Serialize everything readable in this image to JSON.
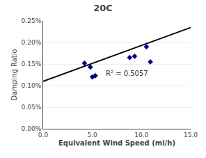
{
  "chart_data": {
    "type": "scatter",
    "title": "20C",
    "xlabel": "Equivalent Wind Speed (mi/h)",
    "ylabel": "Damping Ratio",
    "x": [
      4.2,
      4.8,
      5.0,
      5.3,
      8.8,
      9.3,
      10.5,
      10.9
    ],
    "values": [
      0.00152,
      0.00143,
      0.0012,
      0.00123,
      0.00165,
      0.00168,
      0.0019,
      0.00155
    ],
    "color": "#00008B",
    "marker": "diamond",
    "fit_line": {
      "x": [
        0.0,
        15.0
      ],
      "values": [
        0.0011,
        0.002345
      ],
      "color": "#000000",
      "line_style": "solid"
    },
    "annotations": [
      {
        "text": "R² = 0.5057",
        "x": 6.2,
        "y": 0.00128
      }
    ],
    "xlim": [
      0.0,
      15.0
    ],
    "xticks": [
      {
        "value": 0.0,
        "label": "0.0"
      },
      {
        "value": 5.0,
        "label": "5.0"
      },
      {
        "value": 10.0,
        "label": "10.0"
      },
      {
        "value": 15.0,
        "label": "15.0"
      }
    ],
    "ylim": [
      0.0,
      0.0025
    ],
    "yticks": [
      {
        "value": 0.0,
        "label": "0.00%"
      },
      {
        "value": 0.0005,
        "label": "0.05%"
      },
      {
        "value": 0.001,
        "label": "0.10%"
      },
      {
        "value": 0.0015,
        "label": "0.15%"
      },
      {
        "value": 0.002,
        "label": "0.20%"
      },
      {
        "value": 0.0025,
        "label": "0.25%"
      }
    ],
    "grid": "y"
  }
}
